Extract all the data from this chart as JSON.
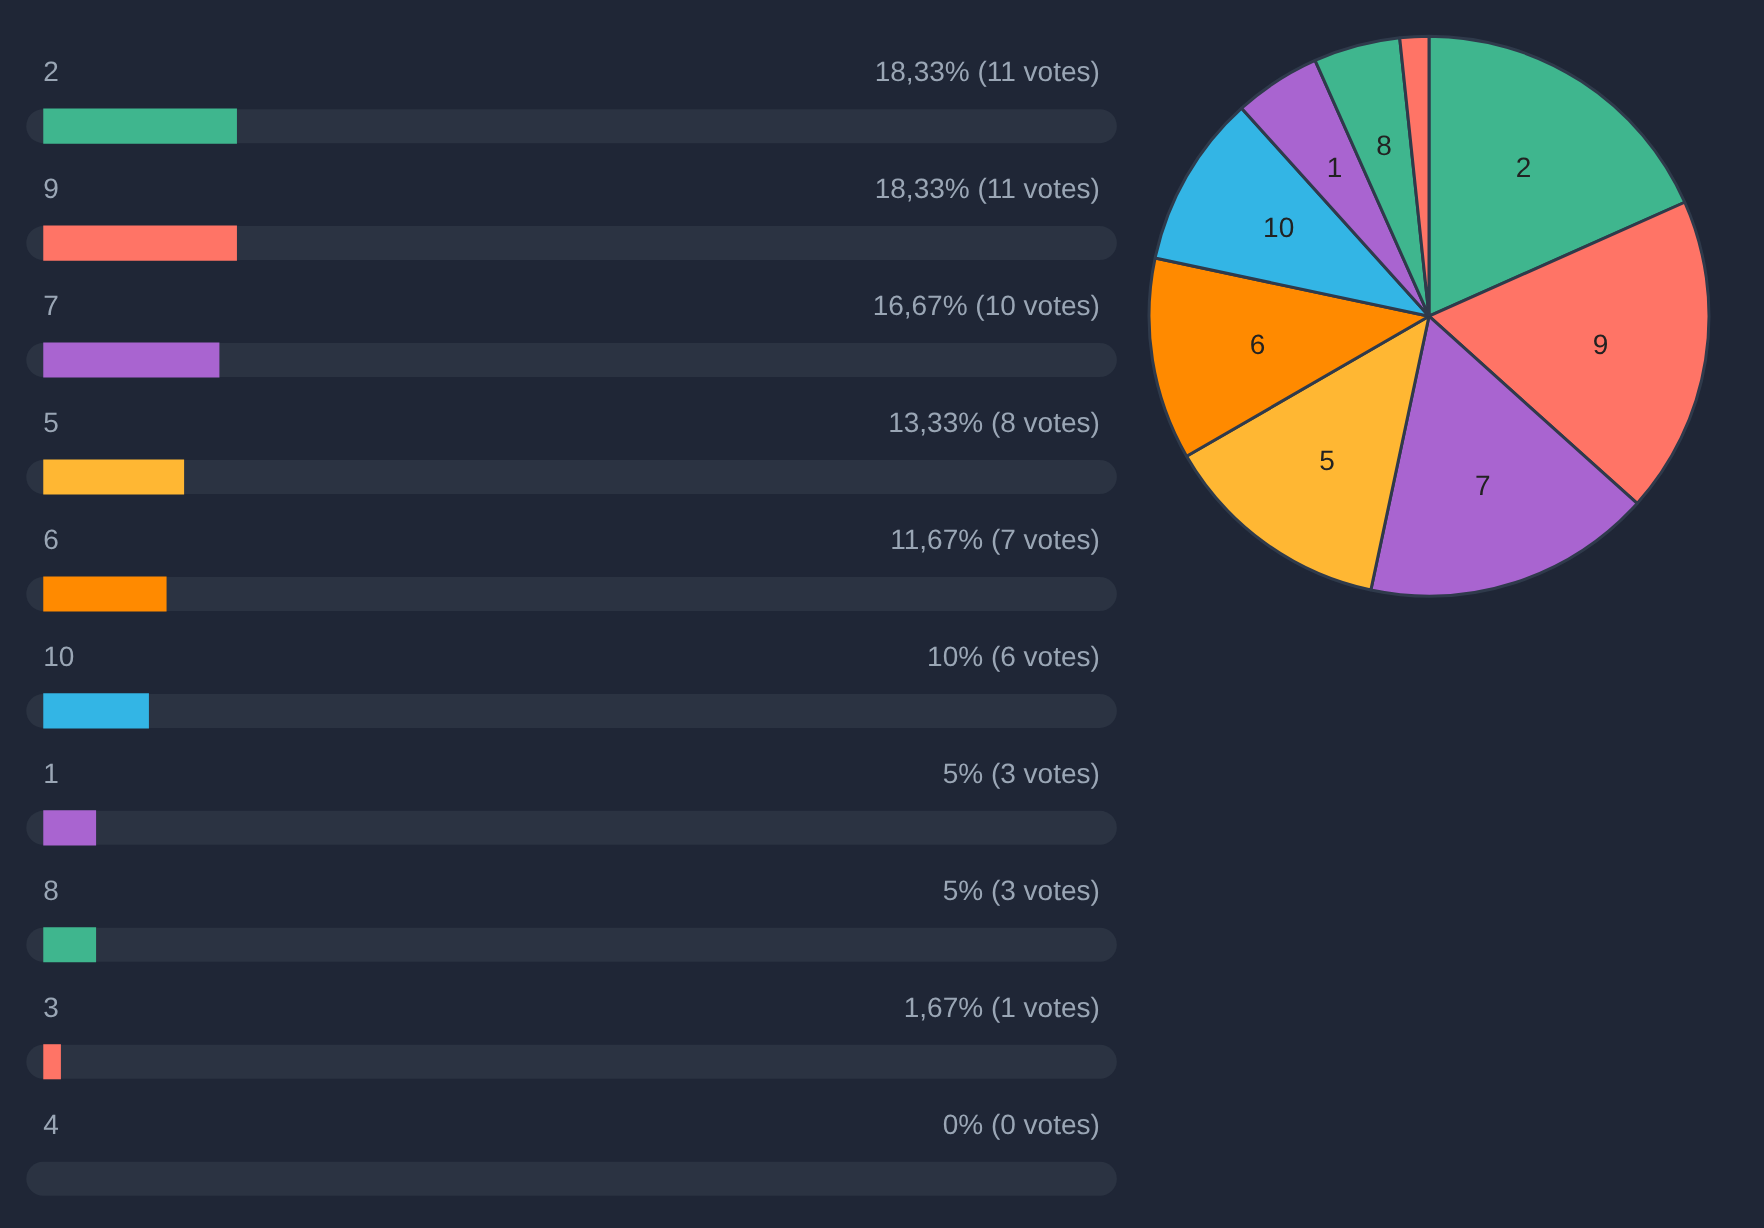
{
  "chart_data": [
    {
      "type": "bar",
      "orientation": "horizontal",
      "categories": [
        "2",
        "9",
        "7",
        "5",
        "6",
        "10",
        "1",
        "8",
        "3",
        "4"
      ],
      "values": [
        18.33,
        18.33,
        16.67,
        13.33,
        11.67,
        10,
        5,
        5,
        1.67,
        0
      ],
      "colors": [
        "#3fb68e",
        "#ff7466",
        "#a964d0",
        "#ffb733",
        "#ff8a00",
        "#33b5e5",
        "#a964d0",
        "#3fb68e",
        "#ff7466",
        "#ff8a00"
      ],
      "value_labels": [
        "18,33% (11 votes)",
        "18,33% (11 votes)",
        "16,67% (10 votes)",
        "13,33% (8 votes)",
        "11,67% (7 votes)",
        "10% (6 votes)",
        "5% (3 votes)",
        "5% (3 votes)",
        "1,67% (1 votes)",
        "0% (0 votes)"
      ],
      "xlim": [
        0,
        100
      ]
    },
    {
      "type": "pie",
      "categories": [
        "2",
        "9",
        "7",
        "5",
        "6",
        "10",
        "1",
        "8",
        null,
        null
      ],
      "values": [
        18.33,
        18.33,
        16.67,
        13.33,
        11.67,
        10,
        5,
        5,
        1.67,
        0
      ],
      "colors": [
        "#3fb68e",
        "#ff7466",
        "#a964d0",
        "#ffb733",
        "#ff8a00",
        "#33b5e5",
        "#a964d0",
        "#3fb68e",
        "#ff7466",
        "#ff8a00"
      ]
    }
  ]
}
